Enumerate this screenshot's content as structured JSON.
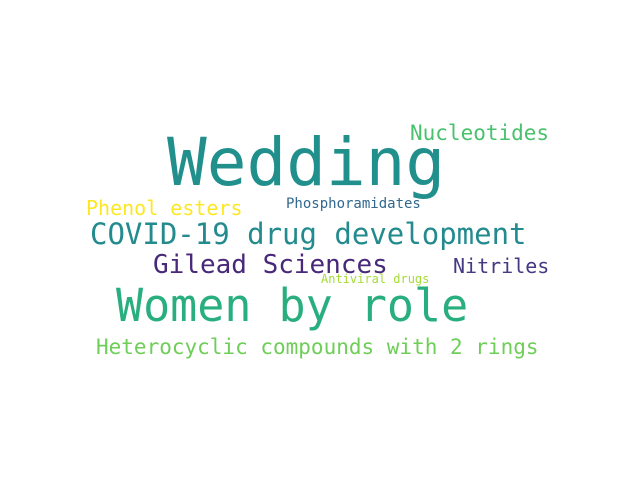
{
  "words": [
    {
      "text": "Wedding",
      "color": "#21908d"
    },
    {
      "text": "Women by role",
      "color": "#29af7f"
    },
    {
      "text": "COVID-19 drug development",
      "color": "#238a8d"
    },
    {
      "text": "Gilead Sciences",
      "color": "#482878"
    },
    {
      "text": "Nucleotides",
      "color": "#4ac16d"
    },
    {
      "text": "Heterocyclic compounds with 2 rings",
      "color": "#6ece58"
    },
    {
      "text": "Phenol esters",
      "color": "#fde725"
    },
    {
      "text": "Phosphoramidates",
      "color": "#31688e"
    },
    {
      "text": "Nitriles",
      "color": "#443983"
    },
    {
      "text": "Antiviral drugs",
      "color": "#a5db36"
    }
  ]
}
